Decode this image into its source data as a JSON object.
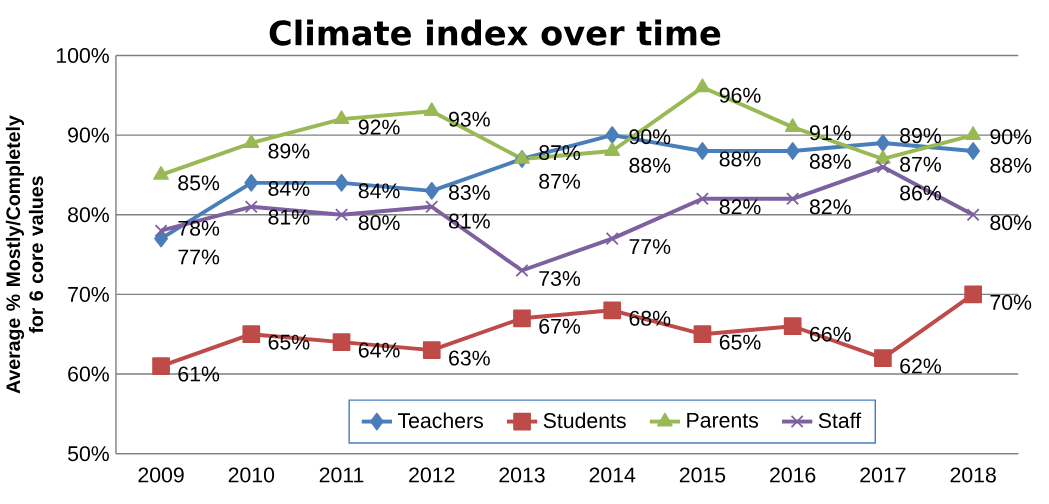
{
  "chart_data": {
    "type": "line",
    "title": "Climate index over time",
    "ylabel": "Average % Mostly/Completely for 6 core values",
    "categories": [
      "2009",
      "2010",
      "2011",
      "2012",
      "2013",
      "2014",
      "2015",
      "2016",
      "2017",
      "2018"
    ],
    "series": [
      {
        "name": "Teachers",
        "color": "#4a7ebb",
        "marker": "diamond",
        "values": [
          77,
          84,
          84,
          83,
          87,
          90,
          88,
          88,
          89,
          88
        ],
        "value_labels": [
          "77%",
          "84%",
          "84%",
          "83%",
          "87%",
          "90%",
          "88%",
          "88%",
          "89%",
          "88%"
        ]
      },
      {
        "name": "Students",
        "color": "#be4b48",
        "marker": "square",
        "values": [
          61,
          65,
          64,
          63,
          67,
          68,
          65,
          66,
          62,
          70
        ],
        "value_labels": [
          "61%",
          "65%",
          "64%",
          "63%",
          "67%",
          "68%",
          "65%",
          "66%",
          "62%",
          "70%"
        ]
      },
      {
        "name": "Parents",
        "color": "#98b954",
        "marker": "triangle",
        "values": [
          85,
          89,
          92,
          93,
          87,
          88,
          96,
          91,
          87,
          90
        ],
        "value_labels": [
          "85%",
          "89%",
          "92%",
          "93%",
          "87%",
          "88%",
          "96%",
          "91%",
          "87%",
          "90%"
        ]
      },
      {
        "name": "Staff",
        "color": "#7d60a0",
        "marker": "cross",
        "values": [
          78,
          81,
          80,
          81,
          73,
          77,
          82,
          82,
          86,
          80
        ],
        "value_labels": [
          "78%",
          "81%",
          "80%",
          "81%",
          "73%",
          "77%",
          "82%",
          "82%",
          "86%",
          "80%"
        ]
      }
    ],
    "ylim": [
      50,
      100
    ],
    "yticks": [
      {
        "value": 50,
        "label": "50%"
      },
      {
        "value": 60,
        "label": "60%"
      },
      {
        "value": 70,
        "label": "70%"
      },
      {
        "value": 80,
        "label": "80%"
      },
      {
        "value": 90,
        "label": "90%"
      },
      {
        "value": 100,
        "label": "100%"
      }
    ],
    "grid": "y",
    "legend": "bottom",
    "line_style": "solid"
  }
}
